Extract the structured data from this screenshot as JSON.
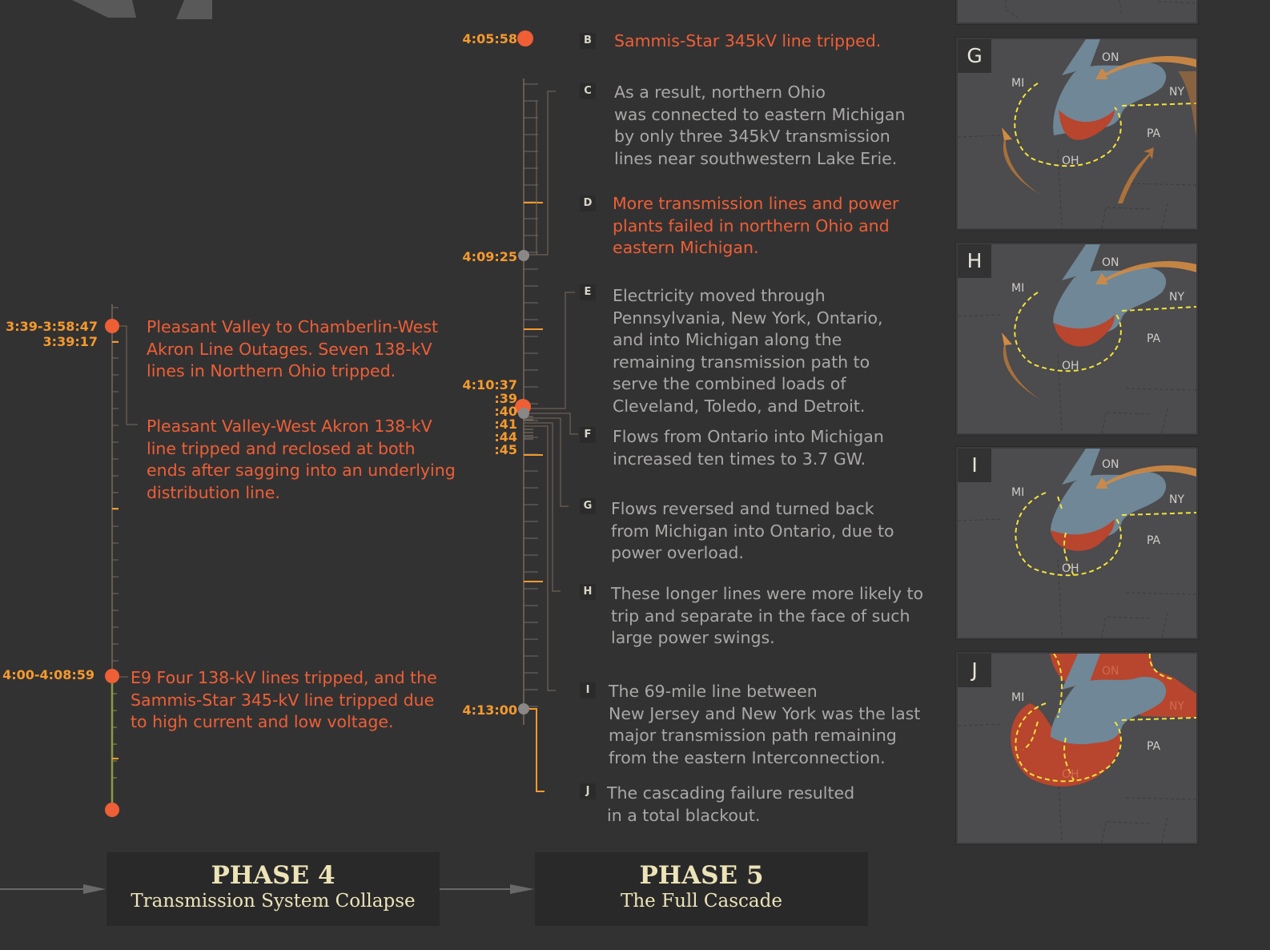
{
  "phase4": {
    "title": "PHASE 4",
    "subtitle": "Transmission System Collapse",
    "times": {
      "t1": "3:39-3:58:47",
      "t2": "3:39:17",
      "t3": "4:00-4:08:59"
    },
    "events": [
      "Pleasant Valley to Chamberlin-West\nAkron Line Outages. Seven 138-kV\nlines in Northern Ohio tripped.",
      "Pleasant Valley-West Akron 138-kV\nline tripped and reclosed at both\nends after sagging into an underlying\ndistribution line.",
      "E9 Four 138-kV lines tripped, and the\nSammis-Star 345-kV line tripped due\nto high current and low voltage."
    ]
  },
  "phase5": {
    "title": "PHASE 5",
    "subtitle": "The Full Cascade",
    "times": {
      "t1": "4:05:58",
      "t2": "4:09:25",
      "t3": "4:10:37",
      "t4": ":39",
      "t5": ":40",
      "t6": ":41",
      "t7": ":44",
      "t8": ":45",
      "t9": "4:13:00"
    },
    "events": [
      {
        "letter": "B",
        "text": "Sammis-Star 345kV line tripped."
      },
      {
        "letter": "C",
        "text": "As a result, northern Ohio\nwas connected to eastern Michigan\nby only three 345kV transmission\nlines near southwestern Lake Erie."
      },
      {
        "letter": "D",
        "text": "More transmission lines and power\nplants failed in northern Ohio and\neastern Michigan."
      },
      {
        "letter": "E",
        "text": "Electricity moved through\nPennsylvania, New York, Ontario,\nand into Michigan along the\nremaining transmission path to\nserve the combined loads of\nCleveland, Toledo, and Detroit."
      },
      {
        "letter": "F",
        "text": "Flows from Ontario into Michigan\nincreased ten times to 3.7 GW."
      },
      {
        "letter": "G",
        "text": "Flows reversed and turned back\nfrom Michigan into Ontario, due to\npower overload."
      },
      {
        "letter": "H",
        "text": "These longer lines were more likely to\ntrip and separate in the face of such\nlarge power swings."
      },
      {
        "letter": "I",
        "text": "The 69-mile line between\nNew Jersey and New York was the last\nmajor transmission path remaining\nfrom the eastern Interconnection."
      },
      {
        "letter": "J",
        "text": "The cascading failure resulted\nin a total blackout."
      }
    ]
  },
  "maps": {
    "labels": [
      "G",
      "H",
      "I",
      "J"
    ],
    "states": {
      "mi": "MI",
      "on": "ON",
      "ny": "NY",
      "pa": "PA",
      "oh": "OH"
    }
  },
  "colors": {
    "background": "#333233",
    "event_orange": "#ee5f35",
    "time_orange": "#f59a2d",
    "body_grey": "#a9a8a6",
    "phase_cream": "#ece4b7",
    "lake_blue": "#6f8797",
    "blackout_red": "#b8452e",
    "boundary_yellow": "#f2e33b"
  }
}
